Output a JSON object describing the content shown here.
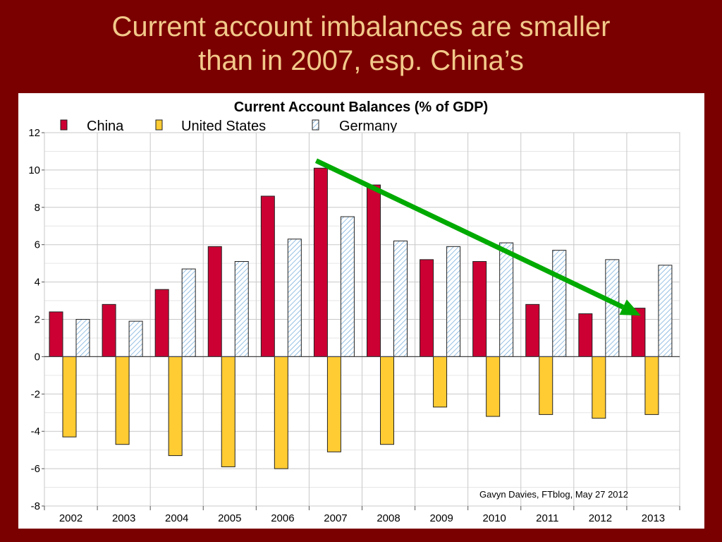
{
  "slide": {
    "title_line1": "Current account imbalances are smaller",
    "title_line2": "than in 2007, esp. China’s"
  },
  "chart_data": {
    "type": "bar",
    "title": "Current Account Balances (% of GDP)",
    "categories": [
      "2002",
      "2003",
      "2004",
      "2005",
      "2006",
      "2007",
      "2008",
      "2009",
      "2010",
      "2011",
      "2012",
      "2013"
    ],
    "series": [
      {
        "name": "China",
        "color": "#cc0033",
        "pattern": "solid",
        "values": [
          2.4,
          2.8,
          3.6,
          5.9,
          8.6,
          10.1,
          9.2,
          5.2,
          5.1,
          2.8,
          2.3,
          2.6
        ]
      },
      {
        "name": "United States",
        "color": "#ffcc33",
        "pattern": "solid",
        "values": [
          -4.3,
          -4.7,
          -5.3,
          -5.9,
          -6.0,
          -5.1,
          -4.7,
          -2.7,
          -3.2,
          -3.1,
          -3.3,
          -3.1
        ]
      },
      {
        "name": "Germany",
        "color": "#aaccee",
        "pattern": "diagonal-hatch",
        "values": [
          2.0,
          1.9,
          4.7,
          5.1,
          6.3,
          7.5,
          6.2,
          5.9,
          6.1,
          5.7,
          5.2,
          4.9
        ]
      }
    ],
    "ylim": [
      -8,
      12
    ],
    "yticks": [
      12,
      10,
      8,
      6,
      4,
      2,
      0,
      -2,
      -4,
      -6,
      -8
    ],
    "grid": true,
    "legend": "top",
    "annotation": {
      "source": "Gavyn Davies, FTblog, May 27 2012",
      "arrow": {
        "from": [
          "2007",
          10.5
        ],
        "to": [
          "2013",
          2.2
        ],
        "color": "#00aa00"
      }
    }
  }
}
